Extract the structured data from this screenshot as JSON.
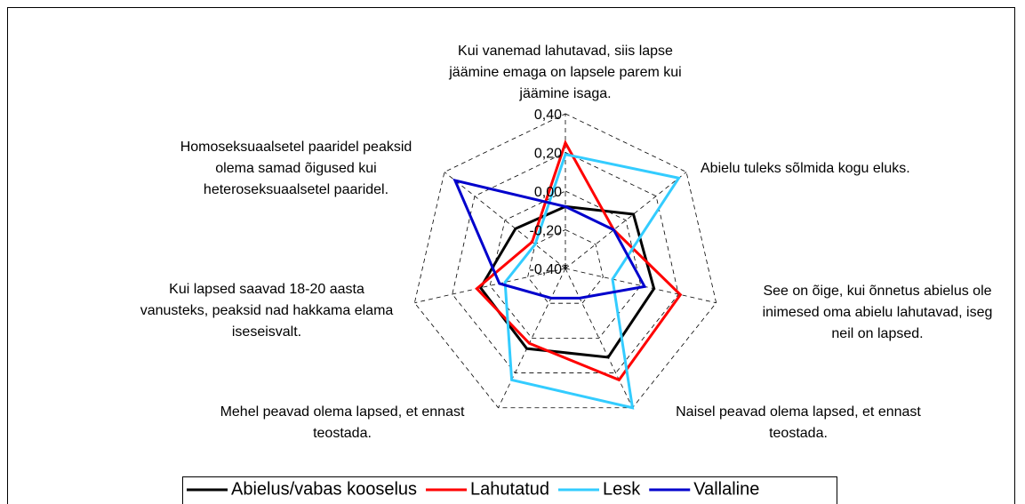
{
  "chart_data": {
    "type": "radar",
    "categories": [
      [
        "Kui vanemad lahutavad, siis lapse",
        "jäämine emaga on lapsele parem kui",
        "jäämine isaga."
      ],
      [
        "Abielu tuleks sõlmida kogu eluks."
      ],
      [
        "See on õige, kui õnnetus abielus ole",
        "inimesed oma abielu lahutavad, iseg",
        "neil on lapsed."
      ],
      [
        "Naisel peavad olema lapsed, et ennast",
        "teostada."
      ],
      [
        "Mehel peavad olema lapsed, et ennast",
        "teostada."
      ],
      [
        "Kui lapsed saavad 18-20 aasta",
        "vanusteks, peaksid nad hakkama elama",
        "iseseisvalt."
      ],
      [
        "Homoseksuaalsetel paaridel peaksid",
        "olema samad õigused kui",
        "heteroseksuaalsetel paaridel."
      ]
    ],
    "series": [
      {
        "name": "Abielus/vabas kooselus",
        "color": "#000000",
        "values": [
          -0.08,
          0.05,
          0.07,
          0.11,
          0.06,
          0.05,
          -0.07
        ]
      },
      {
        "name": "Lahutatud",
        "color": "#ff0000",
        "values": [
          0.25,
          -0.08,
          0.21,
          0.24,
          0.03,
          0.07,
          -0.18
        ]
      },
      {
        "name": "Lesk",
        "color": "#33ccff",
        "values": [
          0.19,
          0.35,
          -0.15,
          0.4,
          0.24,
          -0.08,
          -0.2
        ]
      },
      {
        "name": "Vallaline",
        "color": "#0000cc",
        "values": [
          -0.08,
          -0.08,
          0.02,
          -0.23,
          -0.23,
          -0.05,
          0.33
        ]
      }
    ],
    "ylim": [
      -0.4,
      0.4
    ],
    "yticks": [
      {
        "value": -0.4,
        "label": "-0,40"
      },
      {
        "value": -0.2,
        "label": "-0,20"
      },
      {
        "value": 0,
        "label": "0,00"
      },
      {
        "value": 0.2,
        "label": "0,20"
      },
      {
        "value": 0.4,
        "label": "0,40"
      }
    ],
    "grid": true,
    "legend": "bottom"
  }
}
